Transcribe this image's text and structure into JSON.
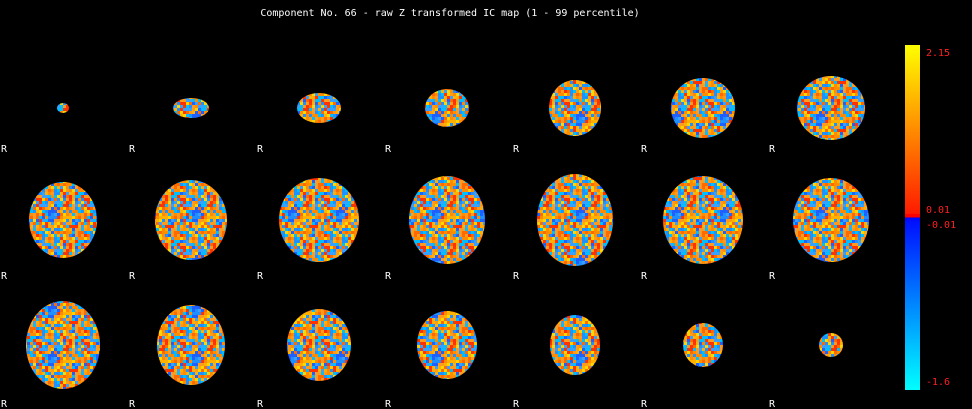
{
  "title": "Component No. 66 - raw Z transformed IC map (1 - 99 percentile)",
  "slice_labels": [
    "R",
    "R",
    "R",
    "R",
    "R",
    "R",
    "R",
    "R",
    "R",
    "R",
    "R",
    "R",
    "R",
    "R",
    "R",
    "R",
    "R",
    "R",
    "R",
    "R",
    "R"
  ],
  "colorbar_ticks": [
    "2.15",
    "0.01",
    "-0.01",
    "-1.6"
  ]
}
